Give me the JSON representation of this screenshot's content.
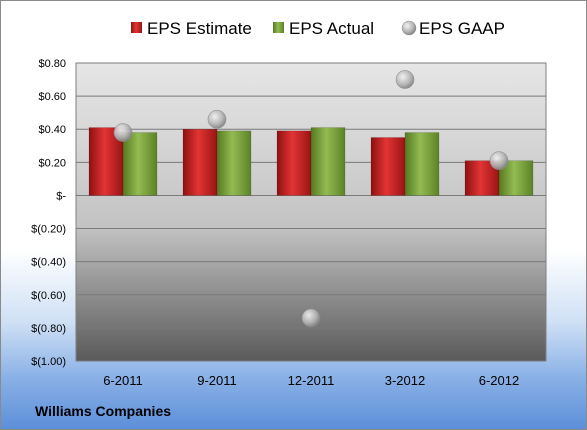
{
  "chart_data": {
    "type": "bar",
    "title": "",
    "company": "Williams Companies",
    "categories": [
      "6-2011",
      "9-2011",
      "12-2011",
      "3-2012",
      "6-2012"
    ],
    "series": [
      {
        "name": "EPS Estimate",
        "kind": "bar",
        "color": "#cc1f1f",
        "values": [
          0.41,
          0.4,
          0.39,
          0.35,
          0.21
        ]
      },
      {
        "name": "EPS Actual",
        "kind": "bar",
        "color": "#7aa33a",
        "values": [
          0.38,
          0.39,
          0.41,
          0.38,
          0.21
        ]
      },
      {
        "name": "EPS GAAP",
        "kind": "scatter",
        "color": "#b0b0b0",
        "values": [
          0.38,
          0.46,
          -0.74,
          0.7,
          0.21
        ]
      }
    ],
    "y_ticks": [
      "$0.80",
      "$0.60",
      "$0.40",
      "$0.20",
      "$-",
      "$(0.20)",
      "$(0.40)",
      "$(0.60)",
      "$(0.80)",
      "$(1.00)"
    ],
    "ylim": [
      -1.0,
      0.8
    ],
    "grid": true,
    "legend_position": "top"
  }
}
